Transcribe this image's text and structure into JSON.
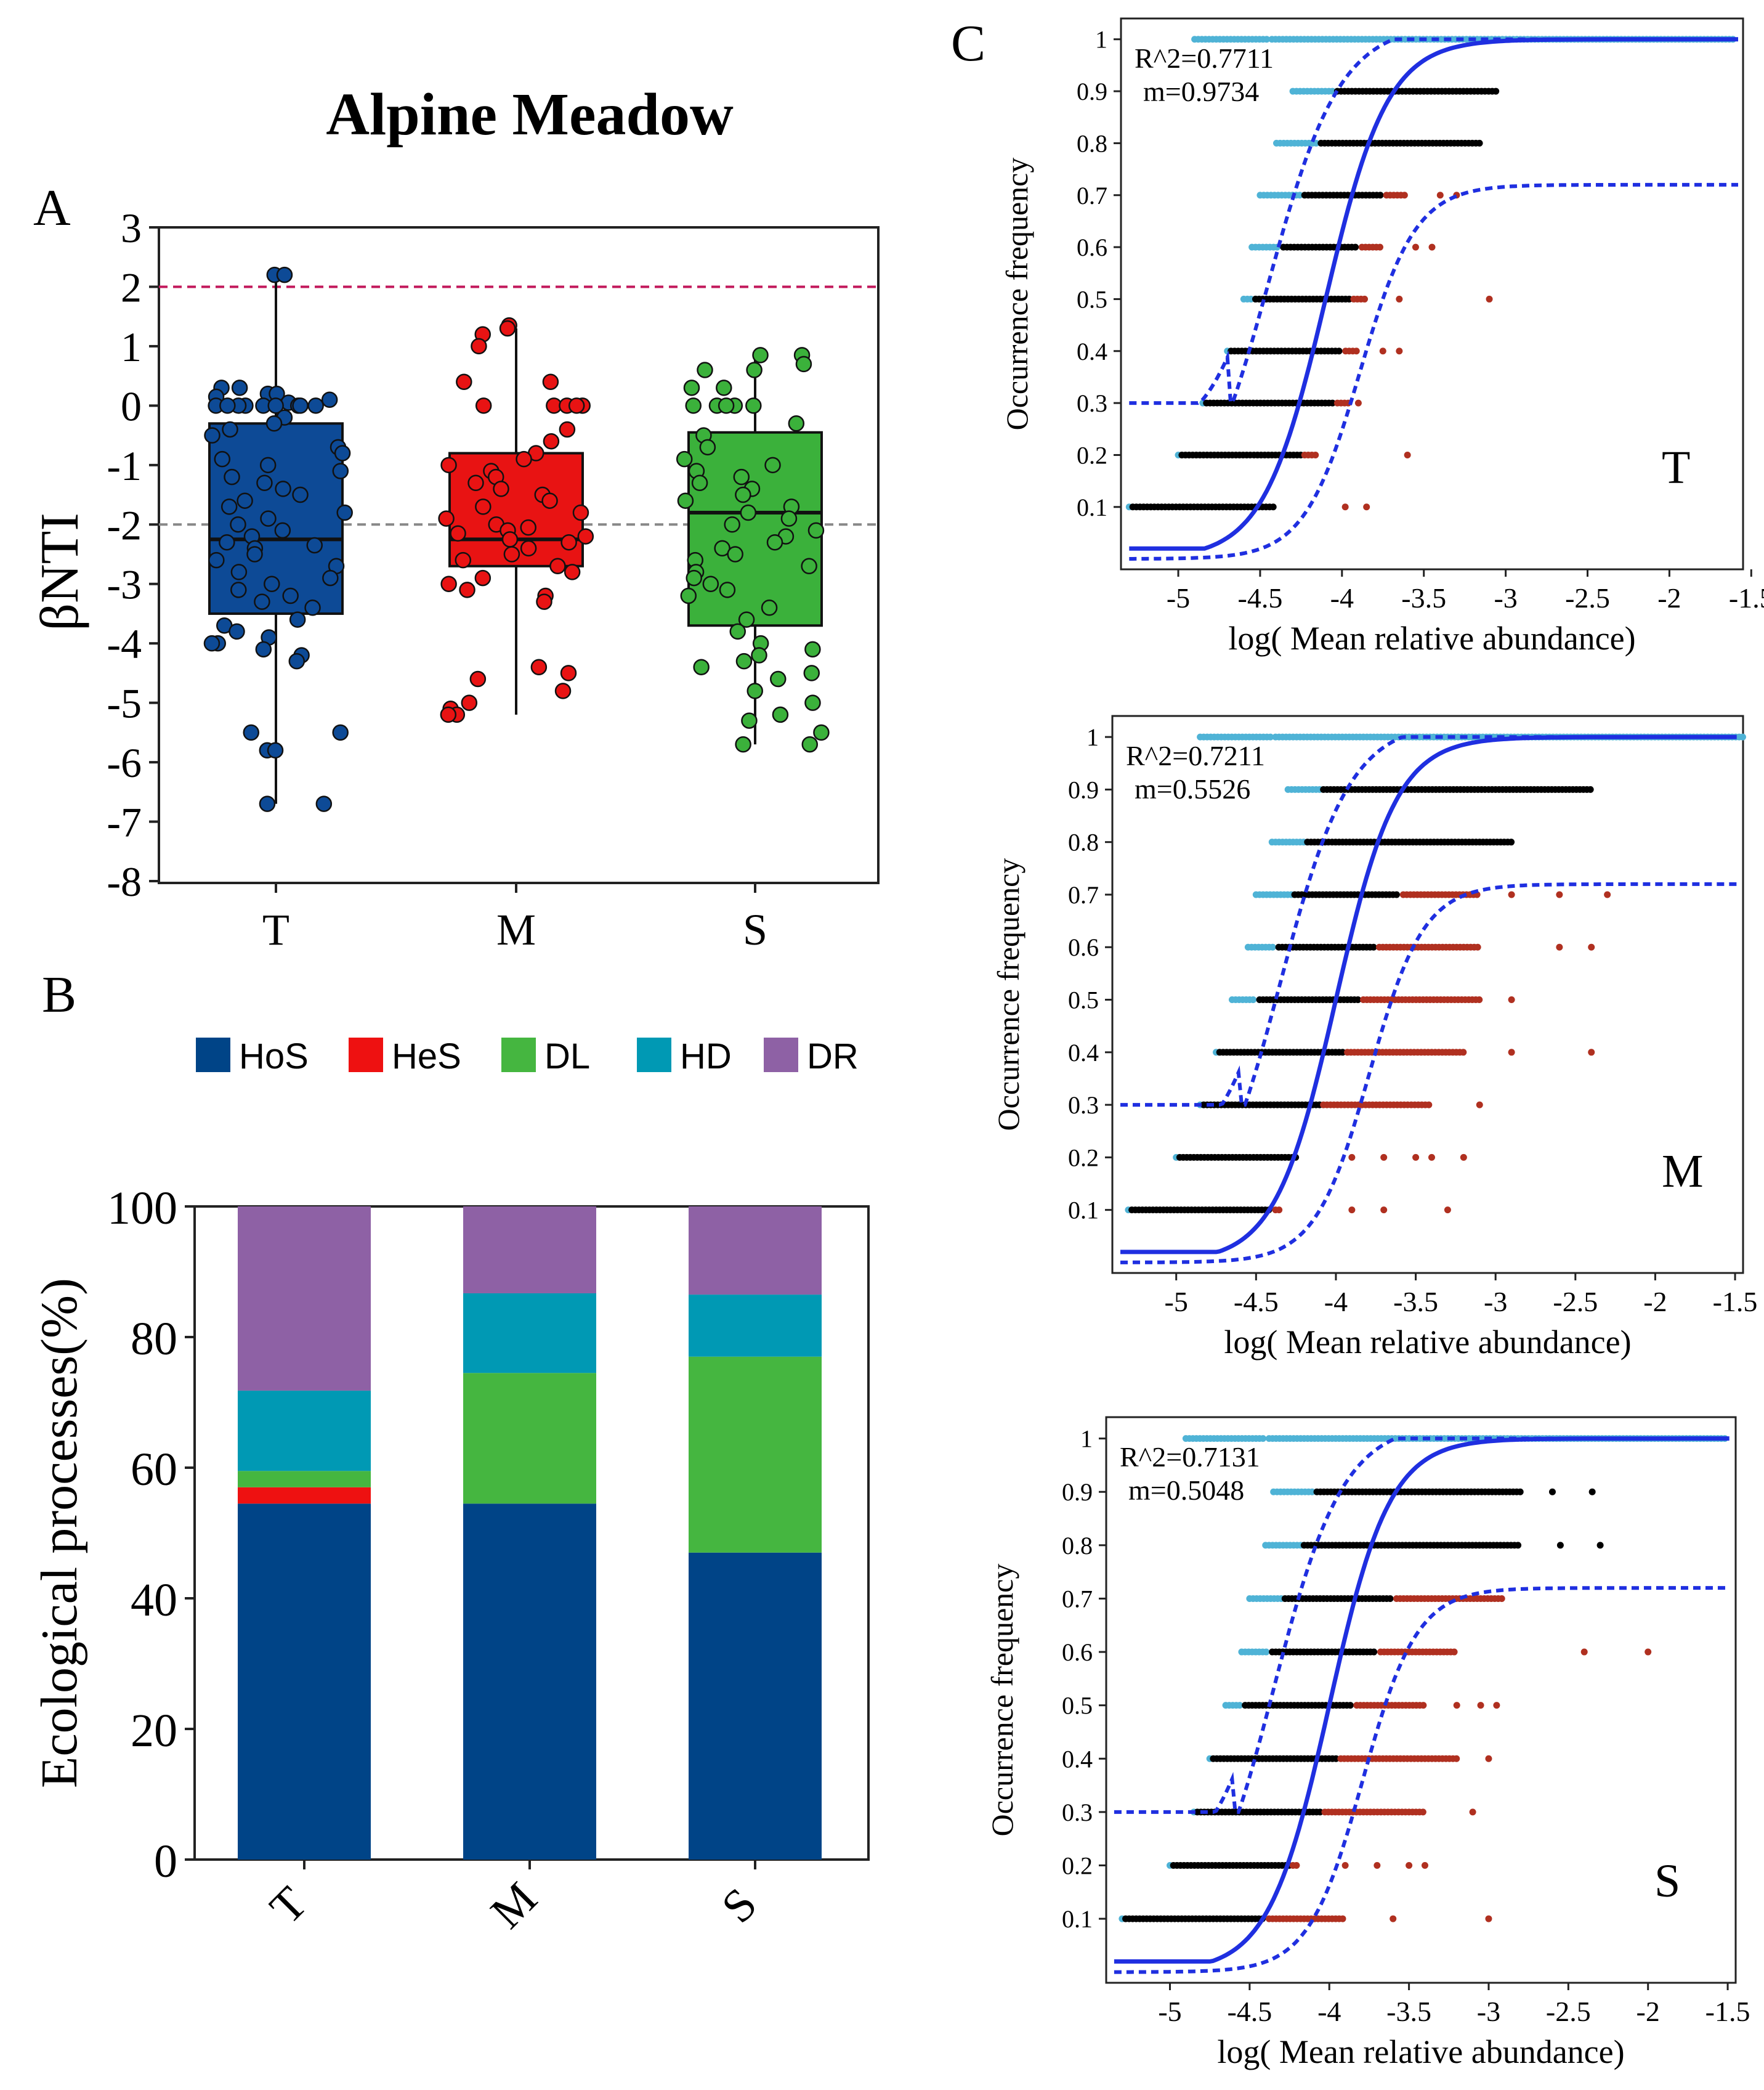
{
  "figure_title": "Alpine Meadow",
  "panel_labels": {
    "a": "A",
    "b": "B",
    "c": "C"
  },
  "colors": {
    "T": "#0d4a96",
    "M": "#e81313",
    "S": "#3bb13b",
    "HoS": "#004487",
    "HeS": "#ee1111",
    "DL": "#45b640",
    "HD": "#0099b4",
    "DR": "#8e61a5",
    "fit": "#1f2fe0",
    "above": "#000000",
    "below_low": "#4fb3d6",
    "below_high": "#b03020",
    "ref_upper": "#c2185b",
    "ref_lower": "#888888"
  },
  "chart_data": [
    {
      "type": "box",
      "panel": "A",
      "ylabel": "βNTI",
      "ylim": [
        -8,
        3
      ],
      "yticks": [
        "3",
        "2",
        "1",
        "0",
        "-1",
        "-2",
        "-3",
        "-4",
        "-5",
        "-6",
        "-7",
        "-8"
      ],
      "yticks_num": [
        3,
        2,
        1,
        0,
        -1,
        -2,
        -3,
        -4,
        -5,
        -6,
        -7,
        -8
      ],
      "categories": [
        "T",
        "M",
        "S"
      ],
      "reference_lines": [
        2,
        -2
      ],
      "boxes": [
        {
          "name": "T",
          "q1": -3.5,
          "median": -2.25,
          "q3": -0.3,
          "whisker_low": -6.7,
          "whisker_high": 2.2
        },
        {
          "name": "M",
          "q1": -2.7,
          "median": -2.25,
          "q3": -0.8,
          "whisker_low": -5.2,
          "whisker_high": 1.3
        },
        {
          "name": "S",
          "q1": -3.7,
          "median": -1.8,
          "q3": -0.45,
          "whisker_low": -5.7,
          "whisker_high": 0.85
        }
      ],
      "points": {
        "T": [
          2.2,
          2.2,
          0.3,
          0.3,
          0.2,
          0.2,
          0.15,
          0.1,
          0.05,
          0.0,
          0.0,
          0.0,
          0.0,
          0.0,
          0.0,
          0.0,
          0.0,
          0.0,
          -0.2,
          -0.3,
          -0.4,
          -0.5,
          -0.7,
          -0.8,
          -0.9,
          -1.0,
          -1.1,
          -1.2,
          -1.3,
          -1.4,
          -1.5,
          -1.6,
          -1.7,
          -1.8,
          -1.9,
          -2.0,
          -2.1,
          -2.2,
          -2.3,
          -2.35,
          -2.4,
          -2.5,
          -2.6,
          -2.7,
          -2.8,
          -2.9,
          -3.0,
          -3.1,
          -3.2,
          -3.3,
          -3.4,
          -3.6,
          -3.7,
          -3.8,
          -3.9,
          -4.0,
          -4.0,
          -4.1,
          -4.2,
          -4.3,
          -5.5,
          -5.5,
          -5.8,
          -5.8,
          -6.7,
          -6.7
        ],
        "M": [
          1.35,
          1.3,
          1.2,
          1.0,
          0.4,
          0.4,
          0.0,
          0.0,
          0.0,
          0.0,
          0.0,
          -0.4,
          -0.6,
          -0.8,
          -0.9,
          -1.0,
          -1.1,
          -1.2,
          -1.3,
          -1.4,
          -1.5,
          -1.6,
          -1.7,
          -1.8,
          -1.9,
          -2.0,
          -2.05,
          -2.1,
          -2.15,
          -2.2,
          -2.25,
          -2.3,
          -2.4,
          -2.5,
          -2.6,
          -2.7,
          -2.8,
          -2.9,
          -3.0,
          -3.1,
          -3.2,
          -3.3,
          -4.4,
          -4.5,
          -4.6,
          -4.8,
          -5.0,
          -5.1,
          -5.2,
          -5.2
        ],
        "S": [
          0.85,
          0.85,
          0.7,
          0.6,
          0.6,
          0.3,
          0.3,
          0.0,
          0.0,
          0.0,
          0.0,
          0.0,
          -0.3,
          -0.5,
          -0.7,
          -0.9,
          -1.0,
          -1.1,
          -1.2,
          -1.3,
          -1.4,
          -1.5,
          -1.6,
          -1.7,
          -1.8,
          -1.9,
          -2.0,
          -2.1,
          -2.2,
          -2.3,
          -2.4,
          -2.5,
          -2.6,
          -2.7,
          -2.8,
          -2.9,
          -3.0,
          -3.1,
          -3.2,
          -3.4,
          -3.6,
          -3.8,
          -4.0,
          -4.1,
          -4.2,
          -4.3,
          -4.4,
          -4.5,
          -4.6,
          -4.8,
          -5.0,
          -5.2,
          -5.3,
          -5.5,
          -5.7,
          -5.7
        ]
      }
    },
    {
      "type": "bar",
      "stacked": true,
      "panel": "B",
      "ylabel": "Ecological processes(%)",
      "ylim": [
        0,
        100
      ],
      "yticks": [
        "0",
        "20",
        "40",
        "60",
        "80",
        "100"
      ],
      "yticks_num": [
        0,
        20,
        40,
        60,
        80,
        100
      ],
      "categories": [
        "T",
        "M",
        "S"
      ],
      "legend": [
        "HoS",
        "HeS",
        "DL",
        "HD",
        "DR"
      ],
      "series": [
        {
          "name": "HoS",
          "values": [
            54.5,
            54.5,
            47.0
          ]
        },
        {
          "name": "HeS",
          "values": [
            2.5,
            0,
            0
          ]
        },
        {
          "name": "DL",
          "values": [
            2.5,
            20.0,
            30.0
          ]
        },
        {
          "name": "HD",
          "values": [
            12.3,
            12.2,
            9.5
          ]
        },
        {
          "name": "DR",
          "values": [
            28.2,
            13.3,
            13.5
          ]
        }
      ]
    },
    {
      "type": "scatter",
      "panel": "C",
      "label": "T",
      "xlabel": "log( Mean relative abundance)",
      "ylabel": "Occurrence frequency",
      "xlim": [
        -5.35,
        -1.55
      ],
      "ylim": [
        -0.02,
        1.04
      ],
      "xticks": [
        "-5",
        "-4.5",
        "-4",
        "-3.5",
        "-3",
        "-2.5",
        "-2",
        "-1.5"
      ],
      "xticks_num": [
        -5,
        -4.5,
        -4,
        -3.5,
        -3,
        -2.5,
        -2,
        -1.5
      ],
      "yticks": [
        "0.1",
        "0.2",
        "0.3",
        "0.4",
        "0.5",
        "0.6",
        "0.7",
        "0.8",
        "0.9",
        "1"
      ],
      "yticks_num": [
        0.1,
        0.2,
        0.3,
        0.4,
        0.5,
        0.6,
        0.7,
        0.8,
        0.9,
        1.0
      ],
      "r2_text": "R^2=0.7711",
      "m_text": "m=0.9734",
      "fit_center": -4.1,
      "fit_lower_offset": 0.35,
      "fit_upper_max": 0.72,
      "rows": [
        {
          "y": 1.0,
          "below_start": -4.9,
          "below_end": -4.45,
          "above_end": -1.6,
          "high_end": -1.6,
          "high_extra": []
        },
        {
          "y": 0.9,
          "below_start": -4.3,
          "below_end": -4.05,
          "above_end": -3.05,
          "high_end": -3.05,
          "high_extra": []
        },
        {
          "y": 0.8,
          "below_start": -4.4,
          "below_end": -4.15,
          "above_end": -3.15,
          "high_end": -3.15,
          "high_extra": []
        },
        {
          "y": 0.7,
          "below_start": -4.5,
          "below_end": -4.25,
          "above_end": -3.75,
          "high_end": -3.6,
          "high_extra": [
            -3.4,
            -3.3
          ]
        },
        {
          "y": 0.6,
          "below_start": -4.55,
          "below_end": -4.38,
          "above_end": -3.9,
          "high_end": -3.75,
          "high_extra": [
            -3.55,
            -3.45
          ]
        },
        {
          "y": 0.5,
          "below_start": -4.6,
          "below_end": -4.55,
          "above_end": -3.95,
          "high_end": -3.85,
          "high_extra": [
            -3.65,
            -3.1
          ]
        },
        {
          "y": 0.4,
          "below_start": -4.7,
          "below_end": -4.7,
          "above_end": -4.0,
          "high_end": -3.9,
          "high_extra": [
            -3.75,
            -3.65
          ]
        },
        {
          "y": 0.3,
          "below_start": -4.85,
          "below_end": -4.85,
          "above_end": -4.05,
          "high_end": -3.95,
          "high_extra": [
            -3.9
          ]
        },
        {
          "y": 0.2,
          "below_start": -5.0,
          "below_end": -5.0,
          "above_end": -4.25,
          "high_end": -4.15,
          "high_extra": [
            -3.6
          ]
        },
        {
          "y": 0.1,
          "below_start": -5.3,
          "below_end": -5.3,
          "above_end": -4.4,
          "high_end": -4.4,
          "high_extra": [
            -3.98,
            -3.85
          ]
        }
      ]
    },
    {
      "type": "scatter",
      "panel": "C",
      "label": "M",
      "xlabel": "log( Mean relative abundance)",
      "ylabel": "Occurrence frequency",
      "xlim": [
        -5.4,
        -1.45
      ],
      "ylim": [
        -0.02,
        1.04
      ],
      "xticks": [
        "-5",
        "-4.5",
        "-4",
        "-3.5",
        "-3",
        "-2.5",
        "-2",
        "-1.5"
      ],
      "xticks_num": [
        -5,
        -4.5,
        -4,
        -3.5,
        -3,
        -2.5,
        -2,
        -1.5
      ],
      "yticks": [
        "0.1",
        "0.2",
        "0.3",
        "0.4",
        "0.5",
        "0.6",
        "0.7",
        "0.8",
        "0.9",
        "1"
      ],
      "yticks_num": [
        0.1,
        0.2,
        0.3,
        0.4,
        0.5,
        0.6,
        0.7,
        0.8,
        0.9,
        1.0
      ],
      "r2_text": "R^2=0.7211",
      "m_text": "m=0.5526",
      "fit_center": -4.0,
      "fit_lower_offset": 0.35,
      "fit_upper_max": 0.72,
      "rows": [
        {
          "y": 1.0,
          "below_start": -4.85,
          "below_end": -4.4,
          "above_end": -1.45,
          "high_end": -1.45,
          "high_extra": []
        },
        {
          "y": 0.9,
          "below_start": -4.3,
          "below_end": -4.1,
          "above_end": -2.4,
          "high_end": -2.4,
          "high_extra": []
        },
        {
          "y": 0.8,
          "below_start": -4.4,
          "below_end": -4.2,
          "above_end": -2.9,
          "high_end": -2.9,
          "high_extra": []
        },
        {
          "y": 0.7,
          "below_start": -4.5,
          "below_end": -4.28,
          "above_end": -3.6,
          "high_end": -3.1,
          "high_extra": [
            -2.9,
            -2.6,
            -2.3
          ]
        },
        {
          "y": 0.6,
          "below_start": -4.55,
          "below_end": -4.38,
          "above_end": -3.75,
          "high_end": -3.1,
          "high_extra": [
            -2.6,
            -2.4
          ]
        },
        {
          "y": 0.5,
          "below_start": -4.65,
          "below_end": -4.5,
          "above_end": -3.85,
          "high_end": -3.1,
          "high_extra": [
            -2.9
          ]
        },
        {
          "y": 0.4,
          "below_start": -4.75,
          "below_end": -4.75,
          "above_end": -3.95,
          "high_end": -3.2,
          "high_extra": [
            -2.9,
            -2.4
          ]
        },
        {
          "y": 0.3,
          "below_start": -4.85,
          "below_end": -4.85,
          "above_end": -4.1,
          "high_end": -3.4,
          "high_extra": [
            -3.1
          ]
        },
        {
          "y": 0.2,
          "below_start": -5.0,
          "below_end": -5.0,
          "above_end": -4.25,
          "high_end": -4.25,
          "high_extra": [
            -3.9,
            -3.7,
            -3.5,
            -3.4,
            -3.2
          ]
        },
        {
          "y": 0.1,
          "below_start": -5.3,
          "below_end": -5.3,
          "above_end": -4.4,
          "high_end": -4.35,
          "high_extra": [
            -3.9,
            -3.7,
            -3.3
          ]
        }
      ]
    },
    {
      "type": "scatter",
      "panel": "C",
      "label": "S",
      "xlabel": "log( Mean relative abundance)",
      "ylabel": "Occurrence frequency",
      "xlim": [
        -5.4,
        -1.45
      ],
      "ylim": [
        -0.02,
        1.04
      ],
      "xticks": [
        "-5",
        "-4.5",
        "-4",
        "-3.5",
        "-3",
        "-2.5",
        "-2",
        "-1.5"
      ],
      "xticks_num": [
        -5,
        -4.5,
        -4,
        -3.5,
        -3,
        -2.5,
        -2,
        -1.5
      ],
      "yticks": [
        "0.1",
        "0.2",
        "0.3",
        "0.4",
        "0.5",
        "0.6",
        "0.7",
        "0.8",
        "0.9",
        "1"
      ],
      "yticks_num": [
        0.1,
        0.2,
        0.3,
        0.4,
        0.5,
        0.6,
        0.7,
        0.8,
        0.9,
        1.0
      ],
      "r2_text": "R^2=0.7131",
      "m_text": "m=0.5048",
      "fit_center": -4.0,
      "fit_lower_offset": 0.35,
      "fit_upper_max": 0.72,
      "rows": [
        {
          "y": 1.0,
          "below_start": -4.9,
          "below_end": -4.4,
          "above_end": -1.5,
          "high_end": -1.5,
          "high_extra": []
        },
        {
          "y": 0.9,
          "below_start": -4.35,
          "below_end": -4.1,
          "above_end": -2.8,
          "high_end": -2.8,
          "high_extra": [
            -2.6,
            -2.35
          ]
        },
        {
          "y": 0.8,
          "below_start": -4.4,
          "below_end": -4.18,
          "above_end": -2.8,
          "high_end": -2.8,
          "high_extra": [
            -2.55,
            -2.3
          ]
        },
        {
          "y": 0.7,
          "below_start": -4.5,
          "below_end": -4.3,
          "above_end": -3.6,
          "high_end": -2.9,
          "high_extra": []
        },
        {
          "y": 0.6,
          "below_start": -4.55,
          "below_end": -4.38,
          "above_end": -3.7,
          "high_end": -3.2,
          "high_extra": [
            -2.4,
            -2.0
          ]
        },
        {
          "y": 0.5,
          "below_start": -4.65,
          "below_end": -4.55,
          "above_end": -3.85,
          "high_end": -3.4,
          "high_extra": [
            -3.2,
            -3.05,
            -2.95
          ]
        },
        {
          "y": 0.4,
          "below_start": -4.75,
          "below_end": -4.75,
          "above_end": -3.95,
          "high_end": -3.2,
          "high_extra": [
            -3.0
          ]
        },
        {
          "y": 0.3,
          "below_start": -4.85,
          "below_end": -4.85,
          "above_end": -4.05,
          "high_end": -3.4,
          "high_extra": [
            -3.1
          ]
        },
        {
          "y": 0.2,
          "below_start": -5.0,
          "below_end": -5.0,
          "above_end": -4.25,
          "high_end": -4.2,
          "high_extra": [
            -3.9,
            -3.7,
            -3.5,
            -3.4
          ]
        },
        {
          "y": 0.1,
          "below_start": -5.3,
          "below_end": -5.3,
          "above_end": -4.4,
          "high_end": -3.9,
          "high_extra": [
            -3.6,
            -3.0
          ]
        }
      ]
    }
  ]
}
